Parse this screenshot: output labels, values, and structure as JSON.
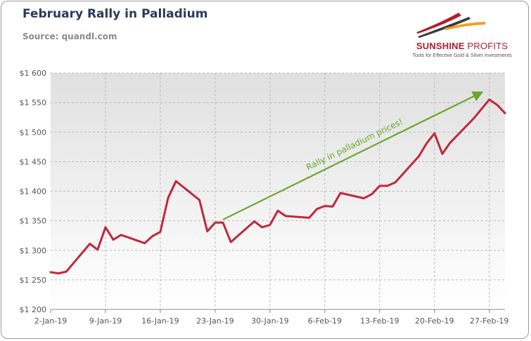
{
  "header": {
    "title": "February Rally in Palladium",
    "subtitle": "Source: quandl.com"
  },
  "logo": {
    "name_bold": "SUNSHINE",
    "name_rest": " PROFITS",
    "tagline": "Tools for Effective Gold & Silver Investments",
    "colors": {
      "red": "#b01e2e",
      "orange": "#f0a020",
      "dark": "#3a3a3a"
    }
  },
  "chart_data": {
    "type": "line",
    "title": "February Rally in Palladium",
    "subtitle": "Source: quandl.com",
    "xlabel": "",
    "ylabel": "",
    "x_start": "2019-01-02",
    "x_end": "2019-03-01",
    "ylim": [
      1200,
      1600
    ],
    "y_ticks": [
      1200,
      1250,
      1300,
      1350,
      1400,
      1450,
      1500,
      1550,
      1600
    ],
    "y_tick_labels": [
      "$1 200",
      "$1 250",
      "$1 300",
      "$1 350",
      "$1 400",
      "$1 450",
      "$1 500",
      "$1 550",
      "$1 600"
    ],
    "x_ticks": [
      "2019-01-02",
      "2019-01-09",
      "2019-01-16",
      "2019-01-23",
      "2019-01-30",
      "2019-02-06",
      "2019-02-13",
      "2019-02-20",
      "2019-02-27"
    ],
    "x_tick_labels": [
      "2-Jan-19",
      "9-Jan-19",
      "16-Jan-19",
      "23-Jan-19",
      "30-Jan-19",
      "6-Feb-19",
      "13-Feb-19",
      "20-Feb-19",
      "27-Feb-19"
    ],
    "grid": true,
    "series": [
      {
        "color": "#c0283c",
        "points": [
          [
            "2019-01-02",
            1263
          ],
          [
            "2019-01-03",
            1261
          ],
          [
            "2019-01-04",
            1264
          ],
          [
            "2019-01-07",
            1311
          ],
          [
            "2019-01-08",
            1301
          ],
          [
            "2019-01-09",
            1339
          ],
          [
            "2019-01-10",
            1318
          ],
          [
            "2019-01-11",
            1326
          ],
          [
            "2019-01-14",
            1312
          ],
          [
            "2019-01-15",
            1324
          ],
          [
            "2019-01-16",
            1331
          ],
          [
            "2019-01-17",
            1389
          ],
          [
            "2019-01-18",
            1417
          ],
          [
            "2019-01-21",
            1385
          ],
          [
            "2019-01-22",
            1332
          ],
          [
            "2019-01-23",
            1347
          ],
          [
            "2019-01-24",
            1347
          ],
          [
            "2019-01-25",
            1314
          ],
          [
            "2019-01-28",
            1349
          ],
          [
            "2019-01-29",
            1339
          ],
          [
            "2019-01-30",
            1343
          ],
          [
            "2019-01-31",
            1367
          ],
          [
            "2019-02-01",
            1358
          ],
          [
            "2019-02-04",
            1355
          ],
          [
            "2019-02-05",
            1370
          ],
          [
            "2019-02-06",
            1375
          ],
          [
            "2019-02-07",
            1374
          ],
          [
            "2019-02-08",
            1397
          ],
          [
            "2019-02-11",
            1388
          ],
          [
            "2019-02-12",
            1395
          ],
          [
            "2019-02-13",
            1409
          ],
          [
            "2019-02-14",
            1409
          ],
          [
            "2019-02-15",
            1415
          ],
          [
            "2019-02-18",
            1459
          ],
          [
            "2019-02-19",
            1481
          ],
          [
            "2019-02-20",
            1498
          ],
          [
            "2019-02-21",
            1463
          ],
          [
            "2019-02-22",
            1482
          ],
          [
            "2019-02-25",
            1523
          ],
          [
            "2019-02-26",
            1539
          ],
          [
            "2019-02-27",
            1555
          ],
          [
            "2019-02-28",
            1546
          ],
          [
            "2019-03-01",
            1532
          ]
        ]
      }
    ],
    "annotations": [
      {
        "text": "Rally in palladium prices!",
        "color": "#6aa629",
        "arrow_from": [
          "2019-01-24",
          1352
        ],
        "arrow_to": [
          "2019-02-26",
          1567
        ]
      }
    ]
  }
}
